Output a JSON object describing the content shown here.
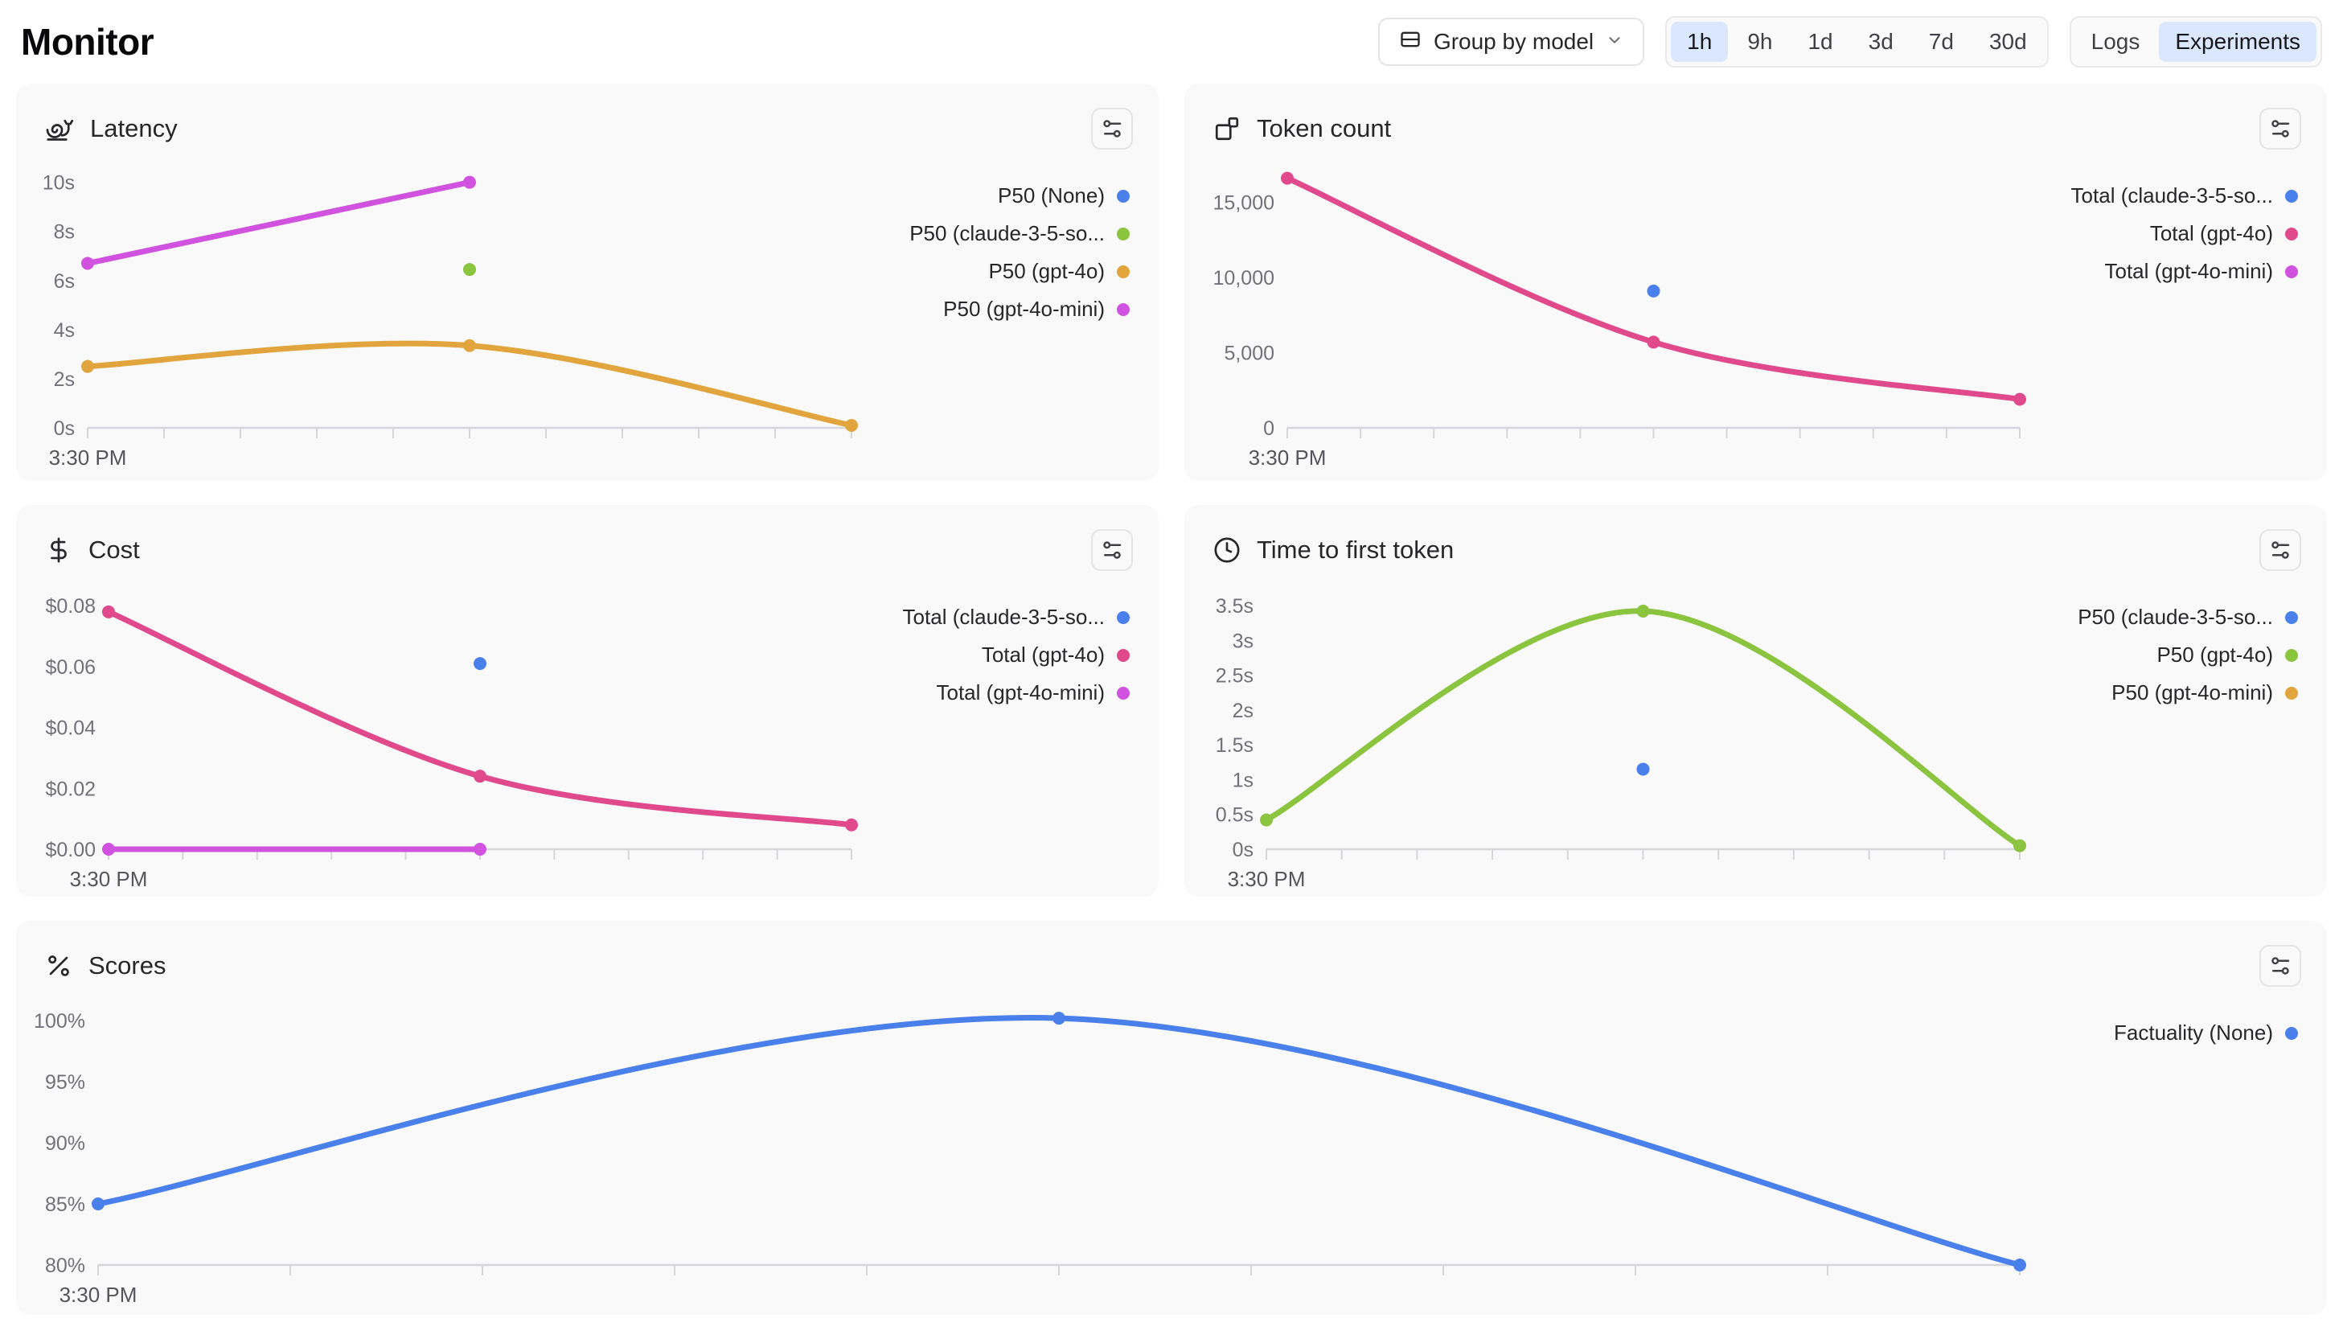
{
  "page": {
    "title": "Monitor"
  },
  "toolbar": {
    "group_by": {
      "label": "Group by model",
      "icon": "rows-icon",
      "chevron": "chevron-down-icon"
    },
    "time_ranges": {
      "options": [
        "1h",
        "9h",
        "1d",
        "3d",
        "7d",
        "30d"
      ],
      "selected": "1h"
    },
    "view_toggle": {
      "options": [
        "Logs",
        "Experiments"
      ],
      "selected": "Experiments"
    }
  },
  "colors": {
    "accent_selected_bg": "#dbe7fc",
    "card_bg": "#f9f9f9",
    "axis": "#d6d6da",
    "tick_text": "#71717a",
    "xlabel_text": "#55555c",
    "blue": "#4a80ec",
    "green": "#8bc43f",
    "amber": "#e2a43c",
    "pink": "#e04a8c",
    "magenta": "#d052de"
  },
  "charts": [
    {
      "title": "Latency",
      "icon": "snail-icon",
      "chart_data": {
        "type": "line",
        "x_label": "3:30 PM",
        "x_tick_count": 11,
        "ylim": [
          0,
          10.35
        ],
        "yticks": [
          {
            "v": 10,
            "label": "10s"
          },
          {
            "v": 8,
            "label": "8s"
          },
          {
            "v": 6,
            "label": "6s"
          },
          {
            "v": 4,
            "label": "4s"
          },
          {
            "v": 2,
            "label": "2s"
          },
          {
            "v": 0,
            "label": "0s"
          }
        ],
        "series": [
          {
            "name": "P50 (None)",
            "color": "#4a80ec",
            "points": []
          },
          {
            "name": "P50 (claude-3-5-so...",
            "color": "#8bc43f",
            "points": [
              {
                "x": 0.5,
                "y": 6.45
              }
            ]
          },
          {
            "name": "P50 (gpt-4o)",
            "color": "#e2a43c",
            "points": [
              {
                "x": 0,
                "y": 2.5
              },
              {
                "x": 0.5,
                "y": 3.35
              },
              {
                "x": 1,
                "y": 0.1
              }
            ]
          },
          {
            "name": "P50 (gpt-4o-mini)",
            "color": "#d052de",
            "points": [
              {
                "x": 0,
                "y": 6.7
              },
              {
                "x": 0.5,
                "y": 10
              }
            ]
          }
        ]
      }
    },
    {
      "title": "Token count",
      "icon": "blocks-icon",
      "chart_data": {
        "type": "line",
        "x_label": "3:30 PM",
        "x_tick_count": 11,
        "ylim": [
          0,
          16900
        ],
        "yticks": [
          {
            "v": 15000,
            "label": "15,000"
          },
          {
            "v": 10000,
            "label": "10,000"
          },
          {
            "v": 5000,
            "label": "5,000"
          },
          {
            "v": 0,
            "label": "0"
          }
        ],
        "series": [
          {
            "name": "Total (claude-3-5-so...",
            "color": "#4a80ec",
            "points": [
              {
                "x": 0.5,
                "y": 9100
              }
            ]
          },
          {
            "name": "Total (gpt-4o)",
            "color": "#e04a8c",
            "points": [
              {
                "x": 0,
                "y": 16600
              },
              {
                "x": 0.5,
                "y": 5700
              },
              {
                "x": 1,
                "y": 1900
              }
            ]
          },
          {
            "name": "Total (gpt-4o-mini)",
            "color": "#d052de",
            "points": []
          }
        ]
      }
    },
    {
      "title": "Cost",
      "icon": "dollar-icon",
      "chart_data": {
        "type": "line",
        "x_label": "3:30 PM",
        "x_tick_count": 11,
        "ylim": [
          0,
          0.0835
        ],
        "yticks": [
          {
            "v": 0.08,
            "label": "$0.08"
          },
          {
            "v": 0.06,
            "label": "$0.06"
          },
          {
            "v": 0.04,
            "label": "$0.04"
          },
          {
            "v": 0.02,
            "label": "$0.02"
          },
          {
            "v": 0,
            "label": "$0.00"
          }
        ],
        "series": [
          {
            "name": "Total (claude-3-5-so...",
            "color": "#4a80ec",
            "points": [
              {
                "x": 0.5,
                "y": 0.061
              }
            ]
          },
          {
            "name": "Total (gpt-4o)",
            "color": "#e04a8c",
            "points": [
              {
                "x": 0,
                "y": 0.078
              },
              {
                "x": 0.5,
                "y": 0.024
              },
              {
                "x": 1,
                "y": 0.008
              }
            ]
          },
          {
            "name": "Total (gpt-4o-mini)",
            "color": "#d052de",
            "points": [
              {
                "x": 0,
                "y": 0
              },
              {
                "x": 0.5,
                "y": 0
              }
            ]
          }
        ]
      }
    },
    {
      "title": "Time to first token",
      "icon": "clock-icon",
      "chart_data": {
        "type": "line",
        "x_label": "3:30 PM",
        "x_tick_count": 11,
        "ylim": [
          0,
          3.65
        ],
        "yticks": [
          {
            "v": 3.5,
            "label": "3.5s"
          },
          {
            "v": 3,
            "label": "3s"
          },
          {
            "v": 2.5,
            "label": "2.5s"
          },
          {
            "v": 2,
            "label": "2s"
          },
          {
            "v": 1.5,
            "label": "1.5s"
          },
          {
            "v": 1,
            "label": "1s"
          },
          {
            "v": 0.5,
            "label": "0.5s"
          },
          {
            "v": 0,
            "label": "0s"
          }
        ],
        "series": [
          {
            "name": "P50 (claude-3-5-so...",
            "color": "#4a80ec",
            "points": [
              {
                "x": 0.5,
                "y": 1.15
              }
            ]
          },
          {
            "name": "P50 (gpt-4o)",
            "color": "#8bc43f",
            "points": [
              {
                "x": 0,
                "y": 0.42
              },
              {
                "x": 0.5,
                "y": 3.42
              },
              {
                "x": 1,
                "y": 0.05
              }
            ]
          },
          {
            "name": "P50 (gpt-4o-mini)",
            "color": "#e2a43c",
            "points": []
          }
        ]
      }
    },
    {
      "title": "Scores",
      "icon": "percent-icon",
      "chart_data": {
        "type": "line",
        "x_label": "3:30 PM",
        "x_tick_count": 11,
        "ylim": [
          80,
          100.8
        ],
        "yticks": [
          {
            "v": 100,
            "label": "100%"
          },
          {
            "v": 95,
            "label": "95%"
          },
          {
            "v": 90,
            "label": "90%"
          },
          {
            "v": 85,
            "label": "85%"
          },
          {
            "v": 80,
            "label": "80%"
          }
        ],
        "series": [
          {
            "name": "Factuality (None)",
            "color": "#4a80ec",
            "points": [
              {
                "x": 0,
                "y": 85
              },
              {
                "x": 0.5,
                "y": 100.2
              },
              {
                "x": 1,
                "y": 80
              }
            ]
          }
        ]
      }
    }
  ]
}
